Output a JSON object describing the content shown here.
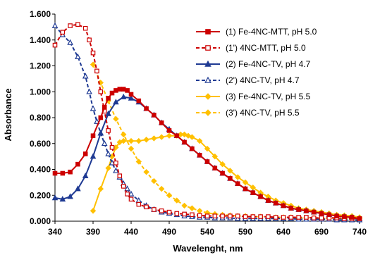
{
  "chart_data": {
    "type": "line",
    "xlabel": "Wavelenght, nm",
    "ylabel": "Absorbance",
    "xlim": [
      340,
      740
    ],
    "ylim": [
      0,
      1.6
    ],
    "x_ticks": [
      340,
      390,
      440,
      490,
      540,
      590,
      640,
      690,
      740
    ],
    "y_ticks": [
      0,
      0.2,
      0.4,
      0.6,
      0.8,
      1.0,
      1.2,
      1.4,
      1.6
    ],
    "x_tick_labels": [
      "340",
      "390",
      "440",
      "490",
      "540",
      "590",
      "640",
      "690",
      "740"
    ],
    "y_tick_labels": [
      "0.000",
      "0.200",
      "0.400",
      "0.600",
      "0.800",
      "1.000",
      "1.200",
      "1.400",
      "1.600"
    ],
    "grid": false,
    "legend_position": "top-right",
    "series": [
      {
        "name": "(1) Fe-4NC-MTT, pH 5.0",
        "color": "#cc0000",
        "dash": false,
        "marker": "square",
        "marker_fill": "filled",
        "x": [
          340,
          350,
          360,
          370,
          380,
          390,
          400,
          405,
          410,
          415,
          420,
          425,
          430,
          435,
          440,
          450,
          460,
          470,
          480,
          490,
          500,
          510,
          520,
          530,
          540,
          550,
          560,
          570,
          580,
          590,
          600,
          610,
          620,
          630,
          640,
          650,
          660,
          670,
          680,
          690,
          700,
          710,
          720,
          730,
          740
        ],
        "y": [
          0.37,
          0.37,
          0.38,
          0.44,
          0.52,
          0.66,
          0.8,
          0.88,
          0.95,
          0.99,
          1.01,
          1.02,
          1.02,
          1.01,
          0.98,
          0.93,
          0.87,
          0.82,
          0.76,
          0.7,
          0.66,
          0.61,
          0.56,
          0.51,
          0.46,
          0.41,
          0.37,
          0.33,
          0.29,
          0.25,
          0.22,
          0.19,
          0.16,
          0.14,
          0.12,
          0.1,
          0.09,
          0.08,
          0.07,
          0.06,
          0.05,
          0.04,
          0.035,
          0.03,
          0.02
        ]
      },
      {
        "name": "(1') 4NC-MTT, pH 5.0",
        "color": "#cc0000",
        "dash": true,
        "marker": "square",
        "marker_fill": "open",
        "x": [
          340,
          350,
          360,
          370,
          380,
          385,
          390,
          395,
          400,
          405,
          410,
          415,
          420,
          425,
          430,
          435,
          440,
          450,
          460,
          470,
          480,
          490,
          500,
          510,
          520,
          530,
          540,
          550,
          560,
          570,
          580,
          590,
          600,
          610,
          620,
          630,
          640,
          650,
          660,
          670,
          680,
          690,
          700,
          710,
          720,
          730,
          740
        ],
        "y": [
          1.36,
          1.46,
          1.51,
          1.52,
          1.49,
          1.4,
          1.3,
          1.16,
          1.0,
          0.85,
          0.7,
          0.57,
          0.45,
          0.35,
          0.27,
          0.21,
          0.17,
          0.13,
          0.11,
          0.09,
          0.08,
          0.07,
          0.06,
          0.055,
          0.05,
          0.045,
          0.04,
          0.04,
          0.04,
          0.04,
          0.04,
          0.035,
          0.035,
          0.035,
          0.035,
          0.03,
          0.03,
          0.03,
          0.03,
          0.03,
          0.025,
          0.025,
          0.025,
          0.025,
          0.02,
          0.02,
          0.02
        ]
      },
      {
        "name": "(2) Fe-4NC-TV, pH 4.7",
        "color": "#1f3a93",
        "dash": false,
        "marker": "triangle",
        "marker_fill": "filled",
        "x": [
          340,
          350,
          360,
          370,
          380,
          390,
          400,
          410,
          420,
          430,
          440,
          450,
          460,
          470,
          480,
          490,
          500,
          510,
          520,
          530,
          540,
          550,
          560,
          570,
          580,
          590,
          600,
          610,
          620,
          630,
          640,
          650,
          660,
          670,
          680,
          690,
          700,
          710,
          720,
          730,
          740
        ],
        "y": [
          0.18,
          0.17,
          0.19,
          0.25,
          0.35,
          0.5,
          0.68,
          0.83,
          0.92,
          0.96,
          0.95,
          0.92,
          0.87,
          0.82,
          0.76,
          0.71,
          0.66,
          0.61,
          0.56,
          0.51,
          0.46,
          0.41,
          0.37,
          0.33,
          0.29,
          0.25,
          0.22,
          0.19,
          0.16,
          0.14,
          0.12,
          0.1,
          0.09,
          0.08,
          0.07,
          0.06,
          0.05,
          0.04,
          0.035,
          0.03,
          0.02
        ]
      },
      {
        "name": "(2') 4NC-TV, pH 4.7",
        "color": "#1f3a93",
        "dash": true,
        "marker": "triangle",
        "marker_fill": "open",
        "x": [
          340,
          350,
          360,
          370,
          380,
          385,
          390,
          395,
          400,
          405,
          410,
          415,
          420,
          425,
          430,
          435,
          440,
          450,
          460,
          470,
          480,
          490,
          500,
          510,
          520,
          530,
          540,
          550,
          560,
          570,
          580,
          590,
          600,
          610,
          620,
          630,
          640,
          650,
          660,
          670,
          680,
          690,
          700,
          710,
          720,
          730,
          740
        ],
        "y": [
          1.51,
          1.44,
          1.38,
          1.27,
          1.12,
          1.0,
          0.87,
          0.77,
          0.68,
          0.6,
          0.52,
          0.45,
          0.39,
          0.34,
          0.29,
          0.25,
          0.21,
          0.16,
          0.12,
          0.09,
          0.07,
          0.06,
          0.05,
          0.04,
          0.035,
          0.03,
          0.03,
          0.025,
          0.025,
          0.025,
          0.02,
          0.02,
          0.02,
          0.02,
          0.02,
          0.02,
          0.02,
          0.02,
          0.015,
          0.015,
          0.015,
          0.015,
          0.015,
          0.01,
          0.01,
          0.01,
          0.01
        ]
      },
      {
        "name": "(3) Fe-4NC-TV, pH 5.5",
        "color": "#ffc000",
        "dash": false,
        "marker": "diamond",
        "marker_fill": "filled",
        "x": [
          390,
          400,
          410,
          415,
          420,
          425,
          430,
          440,
          450,
          460,
          470,
          480,
          490,
          500,
          505,
          510,
          515,
          520,
          530,
          540,
          550,
          560,
          570,
          580,
          590,
          600,
          610,
          620,
          630,
          640,
          650,
          660,
          670,
          680,
          690,
          700,
          710,
          720,
          730,
          740
        ],
        "y": [
          0.08,
          0.25,
          0.41,
          0.5,
          0.57,
          0.61,
          0.62,
          0.62,
          0.62,
          0.63,
          0.64,
          0.65,
          0.66,
          0.66,
          0.67,
          0.67,
          0.66,
          0.65,
          0.62,
          0.56,
          0.5,
          0.44,
          0.39,
          0.34,
          0.3,
          0.26,
          0.22,
          0.19,
          0.16,
          0.14,
          0.12,
          0.1,
          0.09,
          0.08,
          0.07,
          0.06,
          0.05,
          0.045,
          0.04,
          0.03
        ]
      },
      {
        "name": "(3') 4NC-TV, pH 5.5",
        "color": "#ffc000",
        "dash": true,
        "marker": "diamond",
        "marker_fill": "filled",
        "x": [
          390,
          400,
          410,
          420,
          430,
          440,
          450,
          460,
          470,
          480,
          490,
          500,
          510,
          520,
          530,
          540,
          550,
          560,
          570,
          580,
          590,
          600,
          610,
          620,
          630,
          640,
          650,
          660,
          670,
          680,
          690,
          700,
          710,
          720,
          730,
          740
        ],
        "y": [
          1.21,
          1.07,
          0.93,
          0.79,
          0.67,
          0.56,
          0.46,
          0.38,
          0.31,
          0.25,
          0.2,
          0.16,
          0.12,
          0.1,
          0.08,
          0.065,
          0.055,
          0.05,
          0.045,
          0.04,
          0.04,
          0.035,
          0.035,
          0.03,
          0.03,
          0.03,
          0.03,
          0.025,
          0.025,
          0.025,
          0.02,
          0.02,
          0.02,
          0.02,
          0.02,
          0.02
        ]
      }
    ]
  }
}
